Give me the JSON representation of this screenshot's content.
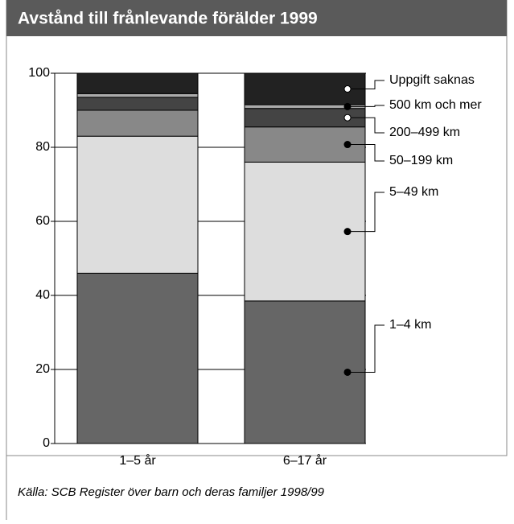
{
  "chart_data": {
    "type": "stacked_bar",
    "title": "Avstånd till frånlevande förälder 1999",
    "categories": [
      "1–5 år",
      "6–17 år"
    ],
    "series": [
      {
        "name": "1–4 km",
        "color": "#666666",
        "values": [
          46,
          38.5
        ]
      },
      {
        "name": "5–49 km",
        "color": "#dddddd",
        "values": [
          37,
          37.5
        ]
      },
      {
        "name": "50–199 km",
        "color": "#888888",
        "values": [
          7,
          9.5
        ]
      },
      {
        "name": "200–499 km",
        "color": "#444444",
        "values": [
          3.5,
          5
        ]
      },
      {
        "name": "500 km och mer",
        "color": "#aaaaaa",
        "values": [
          1,
          1
        ]
      },
      {
        "name": "Uppgift saknas",
        "color": "#222222",
        "values": [
          5.5,
          8.5
        ]
      }
    ],
    "ylim": [
      0,
      100
    ],
    "yticks": [
      0,
      20,
      40,
      60,
      80,
      100
    ],
    "grid": true,
    "source": "Källa: SCB Register över barn och deras familjer 1998/99"
  }
}
